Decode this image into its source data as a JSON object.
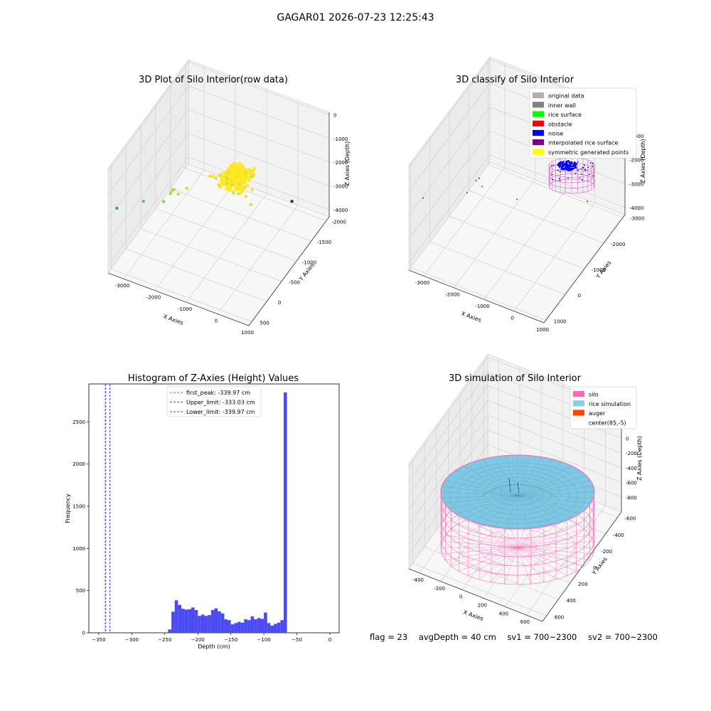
{
  "figure": {
    "suptitle": "GAGAR01 2026-07-23 12:25:43",
    "footer": {
      "flag": "flag = 23",
      "avg_depth": "avgDepth = 40 cm",
      "sv1": "sv1 = 700~2300",
      "sv2": "sv2 = 700~2300"
    }
  },
  "chart_data": [
    {
      "type": "scatter",
      "title": "3D Plot of Silo Interior(row data)",
      "xlabel": "X Axies",
      "ylabel": "Y Axies",
      "zlabel": "Z Axies (Depth)",
      "x_ticks": [
        "-3000",
        "-2000",
        "-1000",
        "0",
        "1000"
      ],
      "y_ticks": [
        "500",
        "0",
        "-500",
        "-1000",
        "-1500",
        "-2000"
      ],
      "z_ticks": [
        "0",
        "-1000",
        "-2000",
        "-3000",
        "-4000"
      ],
      "xlim": [
        -3500,
        1000
      ],
      "ylim": [
        -2100,
        600
      ],
      "zlim": [
        -4300,
        100
      ],
      "colormap": [
        "#440154",
        "#31688e",
        "#35b779",
        "#90d743",
        "#fde725"
      ],
      "points": [
        {
          "x": -3600,
          "y": 200,
          "z": -2300,
          "color": "#2a9d6f"
        },
        {
          "x": -2800,
          "y": 150,
          "z": -1700,
          "color": "#4ebb6a"
        },
        {
          "x": -2200,
          "y": 100,
          "z": -1500,
          "color": "#6ccc5a"
        },
        {
          "x": -2000,
          "y": 80,
          "z": -1100,
          "color": "#8fd744"
        },
        {
          "x": -1950,
          "y": 90,
          "z": -950,
          "color": "#a6dc3c"
        },
        {
          "x": -1900,
          "y": 100,
          "z": -850,
          "color": "#b0dd30"
        },
        {
          "x": -1850,
          "y": 110,
          "z": -800,
          "color": "#b8de30"
        },
        {
          "x": -1750,
          "y": 80,
          "z": -1000,
          "color": "#a0da3a"
        },
        {
          "x": -1600,
          "y": -50,
          "z": -900,
          "color": "#c0df25"
        },
        {
          "x": -900,
          "y": -200,
          "z": -300,
          "color": "#e5e419"
        },
        {
          "x": -800,
          "y": -300,
          "z": -400,
          "color": "#e2e21b"
        },
        {
          "x": -700,
          "y": -250,
          "z": -200,
          "color": "#e8e519"
        },
        {
          "x": -650,
          "y": -150,
          "z": -500,
          "color": "#dfe31c"
        },
        {
          "x": -600,
          "y": -400,
          "z": -350,
          "color": "#e5e419"
        },
        {
          "x": -550,
          "y": -300,
          "z": -600,
          "color": "#d8e21d"
        },
        {
          "x": -500,
          "y": -200,
          "z": -150,
          "color": "#ece51b"
        },
        {
          "x": -450,
          "y": -350,
          "z": -700,
          "color": "#d5e21f"
        },
        {
          "x": -400,
          "y": -100,
          "z": -250,
          "color": "#e8e519"
        },
        {
          "x": -350,
          "y": -450,
          "z": -450,
          "color": "#dfe31c"
        },
        {
          "x": -300,
          "y": -250,
          "z": -800,
          "color": "#cfe11f"
        },
        {
          "x": -250,
          "y": -150,
          "z": -100,
          "color": "#f0e61d"
        },
        {
          "x": -200,
          "y": -350,
          "z": -550,
          "color": "#dfe31c"
        },
        {
          "x": -150,
          "y": -500,
          "z": -300,
          "color": "#e5e419"
        },
        {
          "x": -100,
          "y": -200,
          "z": -650,
          "color": "#d8e21d"
        },
        {
          "x": -50,
          "y": -400,
          "z": -200,
          "color": "#ece51b"
        },
        {
          "x": 0,
          "y": -300,
          "z": -500,
          "color": "#dfe31c"
        },
        {
          "x": 50,
          "y": -550,
          "z": -400,
          "color": "#e2e21b"
        },
        {
          "x": 100,
          "y": -250,
          "z": -750,
          "color": "#d5e21f"
        },
        {
          "x": 150,
          "y": -450,
          "z": -150,
          "color": "#f0e61d"
        },
        {
          "x": 200,
          "y": -350,
          "z": -600,
          "color": "#dfe31c"
        },
        {
          "x": -750,
          "y": -500,
          "z": -850,
          "color": "#cfe11f"
        },
        {
          "x": -950,
          "y": -350,
          "z": -650,
          "color": "#d8e21d"
        },
        {
          "x": -1050,
          "y": -250,
          "z": -450,
          "color": "#e2e21b"
        },
        {
          "x": 300,
          "y": -200,
          "z": -900,
          "color": "#cfe11f"
        },
        {
          "x": -100,
          "y": -650,
          "z": -700,
          "color": "#d5e21f"
        },
        {
          "x": 0,
          "y": -1900,
          "z": -3800,
          "color": "#440154"
        }
      ],
      "dense_cluster": {
        "x_center": -250,
        "y_center": -300,
        "z_center": -50,
        "count": 260,
        "color": "#fde725"
      }
    },
    {
      "type": "scatter",
      "title": "3D classify of Silo Interior",
      "xlabel": "X Axies",
      "ylabel": "Y Axies",
      "zlabel": "Z Axies (Depth)",
      "x_ticks": [
        "-3000",
        "-2000",
        "-1000",
        "0",
        "1000"
      ],
      "y_ticks": [
        "1000",
        "0",
        "-1000",
        "-2000",
        "-3000"
      ],
      "z_ticks": [
        "0",
        "-1000",
        "-2000",
        "-3000",
        "-4000"
      ],
      "xlim": [
        -3500,
        1000
      ],
      "ylim": [
        -3100,
        1100
      ],
      "zlim": [
        -4300,
        100
      ],
      "legend_location": "top-right",
      "legend": [
        {
          "label": "original data",
          "color": "#b0b0b0"
        },
        {
          "label": "inner wall",
          "color": "#808080"
        },
        {
          "label": "rice surface",
          "color": "#00ff00"
        },
        {
          "label": "obstacle",
          "color": "#ff0000"
        },
        {
          "label": "noise",
          "color": "#0000ff"
        },
        {
          "label": "interpolated rice surface",
          "color": "#800080"
        },
        {
          "label": "symmetric generated points",
          "color": "#ffff00"
        }
      ],
      "noise_points": [
        {
          "x": -3600,
          "y": 200,
          "z": -2300
        },
        {
          "x": -2200,
          "y": 100,
          "z": -1500
        },
        {
          "x": -1900,
          "y": 100,
          "z": -850
        },
        {
          "x": -1800,
          "y": 100,
          "z": -700
        },
        {
          "x": -1700,
          "y": 100,
          "z": -1000
        },
        {
          "x": -600,
          "y": 0,
          "z": -1100
        },
        {
          "x": 0,
          "y": -2700,
          "z": -3800
        }
      ],
      "cylinder": {
        "x_center": 0,
        "y_center": 0,
        "radius": 700,
        "z_top": -100,
        "z_bottom": -900,
        "color": "#c000c0"
      }
    },
    {
      "type": "bar",
      "title": "Histogram of Z-Axies (Height) Values",
      "xlabel": "Depth (cm)",
      "ylabel": "Frequency",
      "xlim": [
        -365,
        14
      ],
      "ylim": [
        0,
        2950
      ],
      "x_ticks": [
        -350,
        -300,
        -250,
        -200,
        -150,
        -100,
        -50,
        0
      ],
      "y_ticks": [
        0,
        500,
        1000,
        1500,
        2000,
        2500
      ],
      "bar_color": "#4b4bf5",
      "bin_start": -245,
      "bin_width": 5,
      "values": [
        40,
        250,
        385,
        330,
        285,
        275,
        280,
        300,
        270,
        200,
        215,
        200,
        210,
        270,
        290,
        255,
        230,
        160,
        150,
        100,
        115,
        130,
        120,
        160,
        150,
        195,
        160,
        175,
        165,
        240,
        115,
        85,
        105,
        120,
        150,
        2850
      ],
      "reference_lines": [
        {
          "label": "first_peak: -339.97 cm",
          "value": -339.97,
          "color": "#ff0000"
        },
        {
          "label": "Upper_limit: -333.03 cm",
          "value": -333.03,
          "color": "#0000ff"
        },
        {
          "label": "Lower_limit: -339.97 cm",
          "value": -339.97,
          "color": "#0000ff"
        }
      ],
      "legend_location": "upper-center"
    },
    {
      "type": "area",
      "title": "3D simulation of Silo Interior",
      "xlabel": "X Axies",
      "ylabel": "Y Axies",
      "zlabel": "Z Axies (Depth)",
      "x_ticks": [
        "-400",
        "-200",
        "0",
        "200",
        "400",
        "600"
      ],
      "y_ticks": [
        "600",
        "400",
        "200",
        "0",
        "-200",
        "-400",
        "-600"
      ],
      "z_ticks": [
        "400",
        "200",
        "0",
        "-200",
        "-400",
        "-600",
        "-800"
      ],
      "legend_location": "top-right",
      "legend": [
        {
          "label": "silo",
          "color": "#ff69b4"
        },
        {
          "label": "rice simulation",
          "color": "#87ceeb"
        },
        {
          "label": "auger",
          "color": "#ff4500"
        },
        {
          "label": "center(85,-5)",
          "color": "#ffffff"
        }
      ],
      "silo_radius": 650,
      "silo_z_top": 0,
      "silo_z_bottom": -900,
      "rice_surface_z": -40
    }
  ]
}
